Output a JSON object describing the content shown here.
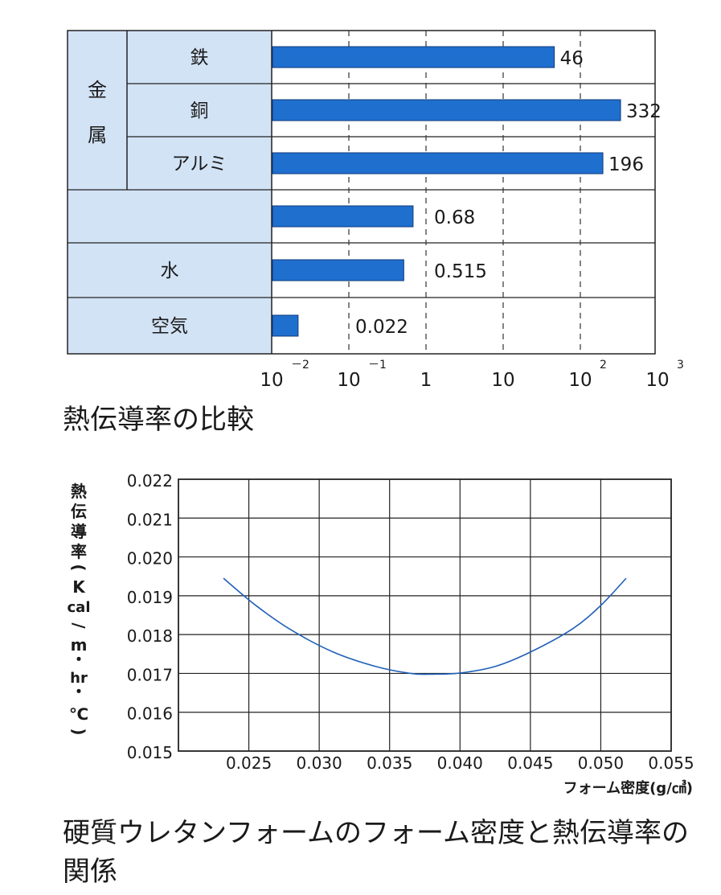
{
  "chart_data": [
    {
      "type": "bar",
      "scale": "log",
      "xlim": [
        0.01,
        1000
      ],
      "group_label": "金属",
      "categories": [
        "鉄",
        "銅",
        "アルミ",
        "",
        "水",
        "空気"
      ],
      "values": [
        46,
        332,
        196,
        0.68,
        0.515,
        0.022
      ],
      "value_labels": [
        "46",
        "332",
        "196",
        "0.68",
        "0.515",
        "0.022"
      ],
      "ticks": [
        {
          "value": 0.01,
          "base": "10",
          "exp": "－2"
        },
        {
          "value": 0.1,
          "base": "10",
          "exp": "－1"
        },
        {
          "value": 1,
          "base": "1",
          "exp": ""
        },
        {
          "value": 10,
          "base": "10",
          "exp": ""
        },
        {
          "value": 100,
          "base": "10",
          "exp": "2"
        },
        {
          "value": 1000,
          "base": "10",
          "exp": "3"
        }
      ],
      "bar_color": "#1f6fcf",
      "label_cell_color": "#d3e3f6",
      "caption": "熱伝導率の比較"
    },
    {
      "type": "line",
      "xlabel": "フォーム密度(g/㎤)",
      "ylabel": "熱伝導率(Kcal/m・hr・℃)",
      "xlim": [
        0.02,
        0.055
      ],
      "ylim": [
        0.015,
        0.022
      ],
      "xticks": [
        "0.025",
        "0.030",
        "0.035",
        "0.040",
        "0.045",
        "0.050",
        "0.055"
      ],
      "yticks": [
        "0.022",
        "0.021",
        "0.020",
        "0.019",
        "0.018",
        "0.017",
        "0.016",
        "0.015"
      ],
      "grid": true,
      "line_color": "#2060b8",
      "series": [
        {
          "x": [
            0.0232,
            0.0255,
            0.028,
            0.031,
            0.034,
            0.0365,
            0.038,
            0.04,
            0.0425,
            0.045,
            0.048,
            0.05,
            0.0518
          ],
          "y": [
            0.01945,
            0.01875,
            0.01812,
            0.01755,
            0.01718,
            0.017,
            0.01698,
            0.01701,
            0.01718,
            0.01755,
            0.01815,
            0.01875,
            0.01945
          ]
        }
      ],
      "caption": "硬質ウレタンフォームのフォーム密度と熱伝導率の関係"
    }
  ]
}
